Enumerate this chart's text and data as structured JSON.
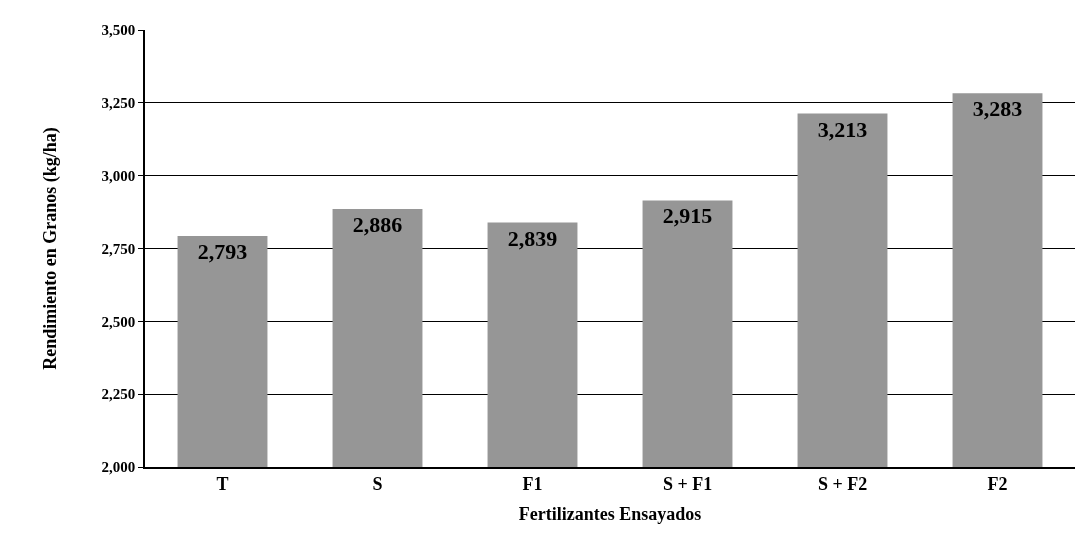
{
  "chart_data": {
    "type": "bar",
    "xlabel": "Fertilizantes Ensayados",
    "ylabel": "Rendimiento en Granos (kg/ha)",
    "categories": [
      "T",
      "S",
      "F1",
      "S + F1",
      "S + F2",
      "F2"
    ],
    "values": [
      2793,
      2886,
      2839,
      2915,
      3213,
      3283
    ],
    "value_labels": [
      "2,793",
      "2,886",
      "2,839",
      "2,915",
      "3,213",
      "3,283"
    ],
    "color": "#969696",
    "ylim": [
      2000,
      3500
    ],
    "yticks": [
      {
        "value": 2000,
        "label": "2,000"
      },
      {
        "value": 2250,
        "label": "2,250"
      },
      {
        "value": 2500,
        "label": "2,500"
      },
      {
        "value": 2750,
        "label": "2,750"
      },
      {
        "value": 3000,
        "label": "3,000"
      },
      {
        "value": 3250,
        "label": "3,250"
      },
      {
        "value": 3500,
        "label": "3,500"
      }
    ],
    "grid": "y",
    "legend": false
  }
}
